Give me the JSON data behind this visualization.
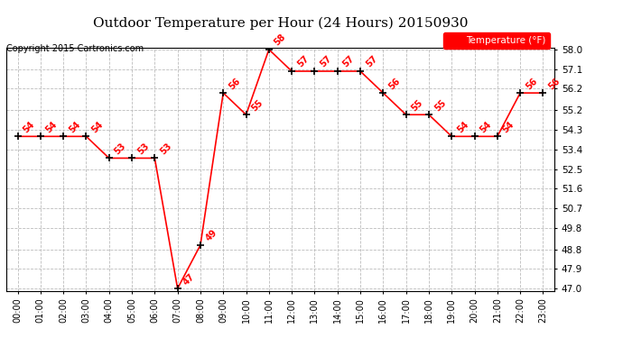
{
  "title": "Outdoor Temperature per Hour (24 Hours) 20150930",
  "copyright": "Copyright 2015 Cartronics.com",
  "legend_label": "Temperature (°F)",
  "hours": [
    0,
    1,
    2,
    3,
    4,
    5,
    6,
    7,
    8,
    9,
    10,
    11,
    12,
    13,
    14,
    15,
    16,
    17,
    18,
    19,
    20,
    21,
    22,
    23
  ],
  "temps": [
    54,
    54,
    54,
    54,
    53,
    53,
    53,
    47,
    49,
    56,
    55,
    58,
    57,
    57,
    57,
    57,
    56,
    55,
    55,
    54,
    54,
    54,
    56,
    56
  ],
  "ylim_min": 47.0,
  "ylim_max": 58.0,
  "yticks": [
    47.0,
    47.9,
    48.8,
    49.8,
    50.7,
    51.6,
    52.5,
    53.4,
    54.3,
    55.2,
    56.2,
    57.1,
    58.0
  ],
  "line_color": "red",
  "marker_color": "black",
  "annotation_color": "red",
  "title_fontsize": 11,
  "copyright_fontsize": 7,
  "background_color": "white",
  "grid_color": "#bbbbbb",
  "legend_bg": "red",
  "legend_fg": "white"
}
